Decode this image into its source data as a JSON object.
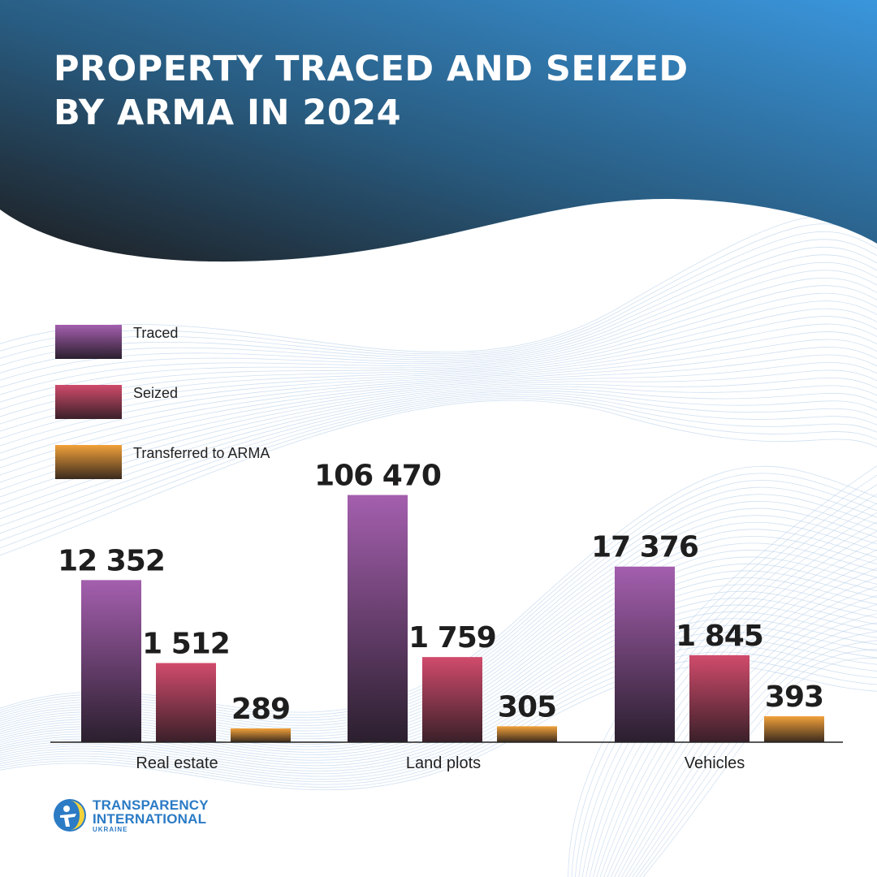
{
  "title_lines": [
    "PROPERTY TRACED AND SEIZED",
    "BY ARMA IN 2024"
  ],
  "colors": {
    "header_dark": "#1d1d1f",
    "header_blue": "#3a96dc",
    "traced_top": "#a45fae",
    "traced_bottom": "#2b1f2e",
    "seized_top": "#d14b6c",
    "seized_bottom": "#3a2029",
    "transferred_top": "#f2a13a",
    "transferred_bottom": "#3a2a1e",
    "waves": "#a9c6e6"
  },
  "chart_data": {
    "type": "bar",
    "title": "PROPERTY TRACED AND SEIZED BY ARMA IN 2024",
    "categories": [
      "Real estate",
      "Land plots",
      "Vehicles"
    ],
    "series": [
      {
        "name": "Traced",
        "values": [
          12352,
          106470,
          17376
        ],
        "labels": [
          "12 352",
          "106 470",
          "17 376"
        ]
      },
      {
        "name": "Seized",
        "values": [
          1512,
          1759,
          1845
        ],
        "labels": [
          "1 512",
          "1 759",
          "1 845"
        ]
      },
      {
        "name": "Transferred to ARMA",
        "values": [
          289,
          305,
          393
        ],
        "labels": [
          "289",
          "305",
          "393"
        ]
      }
    ],
    "grid": false,
    "legend_position": "left"
  },
  "logo": {
    "line1": "TRANSPARENCY",
    "line2": "INTERNATIONAL",
    "line3": "UKRAINE"
  }
}
